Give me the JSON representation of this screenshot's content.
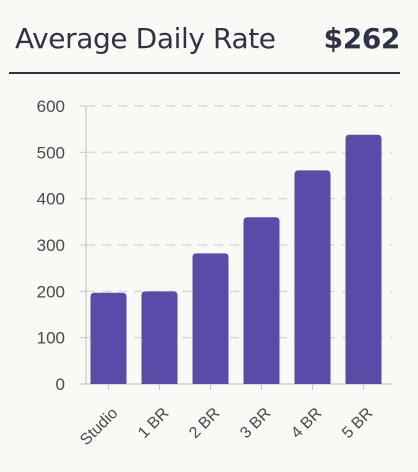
{
  "header": {
    "title": "Average Daily Rate",
    "value": "$262"
  },
  "chart_data": {
    "type": "bar",
    "title": "",
    "xlabel": "",
    "ylabel": "",
    "categories": [
      "Studio",
      "1 BR",
      "2 BR",
      "3 BR",
      "4 BR",
      "5 BR"
    ],
    "values": [
      197,
      200,
      282,
      360,
      461,
      538
    ],
    "ylim": [
      0,
      600
    ],
    "yticks": [
      0,
      100,
      200,
      300,
      400,
      500,
      600
    ],
    "grid": true,
    "legend": "none",
    "colors": {
      "bar": "#5b4aa8",
      "grid": "#d9d9d9",
      "axis": "#c8c8c8",
      "tick_label": "#4a4a4a",
      "text": "#2e3446"
    }
  }
}
